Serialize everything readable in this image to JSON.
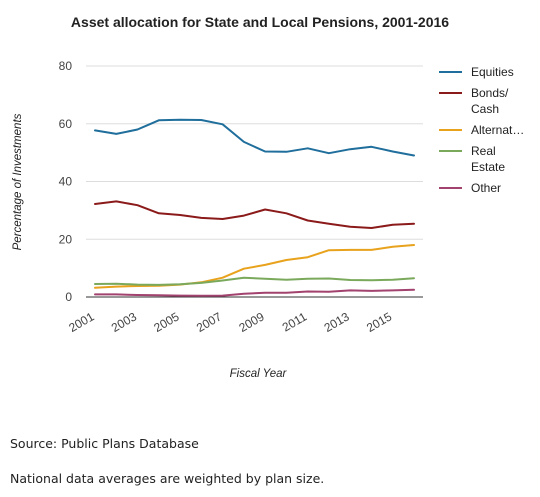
{
  "chart_data": {
    "type": "line",
    "title": "Asset allocation for State and Local Pensions, 2001-2016",
    "xlabel": "Fiscal Year",
    "ylabel": "Percentage of Investments",
    "x": [
      2001,
      2002,
      2003,
      2004,
      2005,
      2006,
      2007,
      2008,
      2009,
      2010,
      2011,
      2012,
      2013,
      2014,
      2015,
      2016
    ],
    "x_tick_labels": [
      "2001",
      "2003",
      "2005",
      "2007",
      "2009",
      "2011",
      "2013",
      "2015"
    ],
    "ylim": [
      0,
      80
    ],
    "y_ticks": [
      0,
      20,
      40,
      60,
      80
    ],
    "grid": true,
    "legend_position": "right",
    "series": [
      {
        "name": "Equities",
        "legend_lines": [
          "Equities"
        ],
        "color": "#1f6e9c",
        "values": [
          57.7,
          56.5,
          58.0,
          61.2,
          61.4,
          61.3,
          59.8,
          53.7,
          50.4,
          50.3,
          51.5,
          49.8,
          51.2,
          52.0,
          50.4,
          49.0
        ]
      },
      {
        "name": "Bonds/ Cash",
        "legend_lines": [
          "Bonds/",
          "Cash"
        ],
        "color": "#8b1a1a",
        "values": [
          32.2,
          33.1,
          31.8,
          29.0,
          28.4,
          27.4,
          27.0,
          28.2,
          30.3,
          29.0,
          26.5,
          25.4,
          24.3,
          23.9,
          25.0,
          25.4
        ]
      },
      {
        "name": "Alternat…",
        "legend_lines": [
          "Alternat…"
        ],
        "color": "#e8a21c",
        "values": [
          3.2,
          3.6,
          3.8,
          3.9,
          4.3,
          5.1,
          6.7,
          9.8,
          11.1,
          12.8,
          13.8,
          16.2,
          16.3,
          16.3,
          17.4,
          18.0
        ]
      },
      {
        "name": "Real Estate",
        "legend_lines": [
          "Real",
          "Estate"
        ],
        "color": "#7aa95c",
        "values": [
          4.5,
          4.6,
          4.3,
          4.2,
          4.4,
          4.9,
          5.7,
          6.7,
          6.3,
          6.0,
          6.3,
          6.4,
          5.9,
          5.8,
          6.0,
          6.5
        ]
      },
      {
        "name": "Other",
        "legend_lines": [
          "Other"
        ],
        "color": "#a2426e",
        "values": [
          0.9,
          0.9,
          0.7,
          0.6,
          0.5,
          0.4,
          0.5,
          1.1,
          1.5,
          1.5,
          1.9,
          1.8,
          2.3,
          2.1,
          2.3,
          2.5
        ]
      }
    ]
  },
  "notes": {
    "source": "Source: Public Plans Database",
    "weighting": "National data averages are weighted by plan size."
  }
}
